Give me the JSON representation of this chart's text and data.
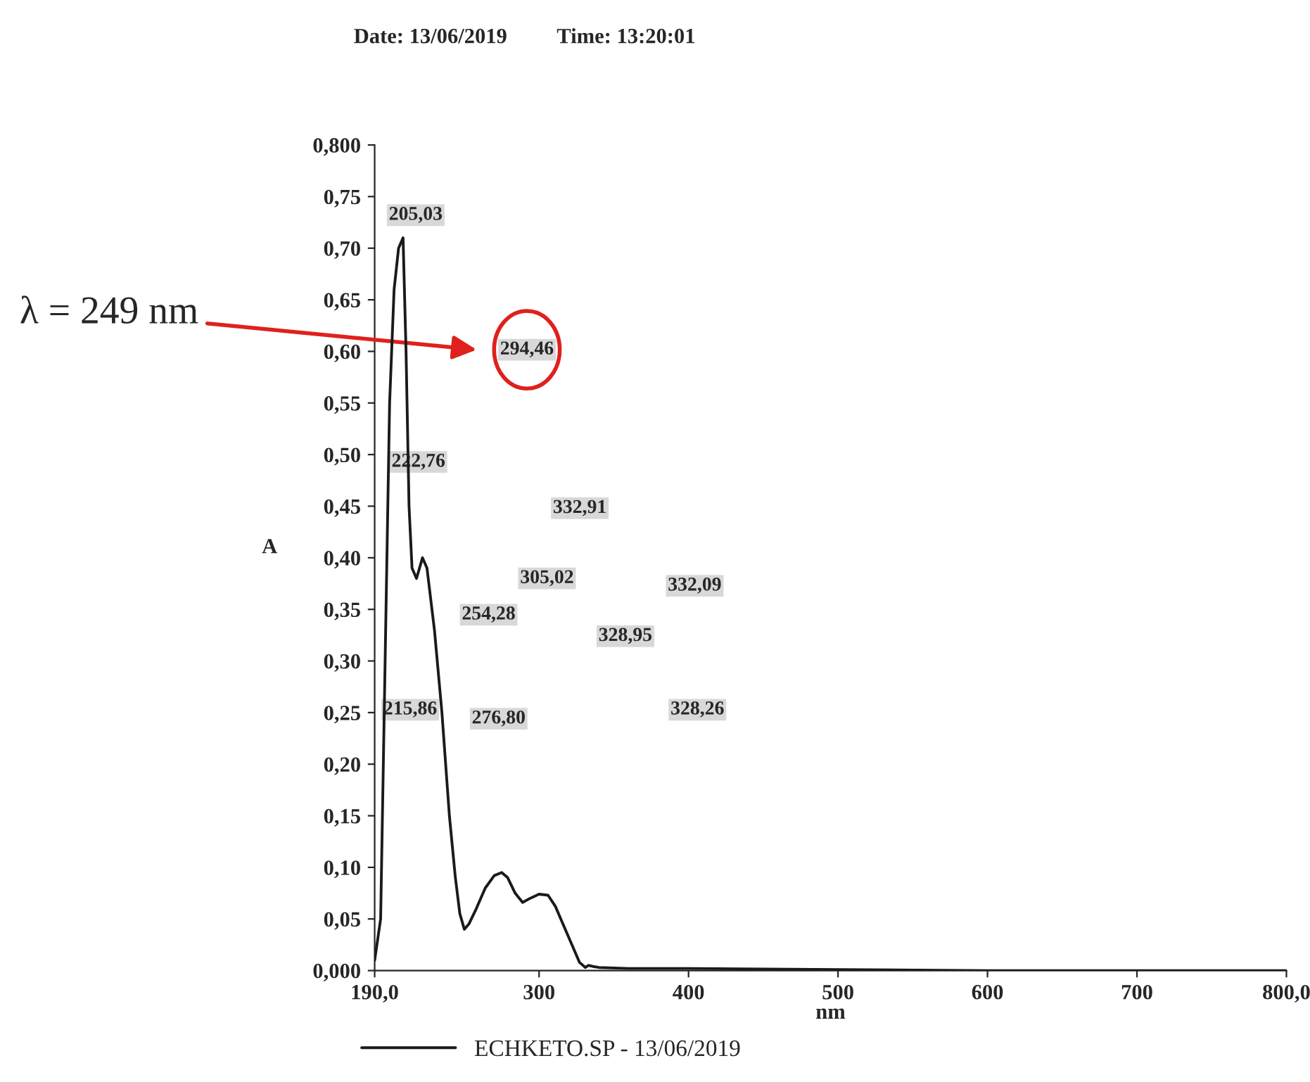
{
  "chart_data": {
    "type": "line",
    "xlabel": "nm",
    "ylabel": "A",
    "series": [
      {
        "name": "ECHKETO.SP - 13/06/2019",
        "color": "#1a1a1a",
        "x": [
          190,
          194,
          197,
          200,
          203,
          206,
          209,
          211,
          213,
          215,
          218,
          222,
          225,
          230,
          235,
          240,
          244,
          247,
          250,
          253,
          258,
          264,
          270,
          275,
          279,
          284,
          289,
          294,
          300,
          306,
          311,
          316,
          322,
          327,
          331,
          333,
          336,
          340,
          360,
          400,
          500,
          600,
          700,
          800
        ],
        "values": [
          0.01,
          0.05,
          0.3,
          0.55,
          0.66,
          0.7,
          0.71,
          0.6,
          0.45,
          0.39,
          0.38,
          0.4,
          0.39,
          0.33,
          0.25,
          0.15,
          0.09,
          0.055,
          0.04,
          0.045,
          0.06,
          0.08,
          0.092,
          0.095,
          0.09,
          0.075,
          0.066,
          0.07,
          0.074,
          0.073,
          0.062,
          0.045,
          0.025,
          0.008,
          0.003,
          0.005,
          0.004,
          0.003,
          0.002,
          0.002,
          0.001,
          0.0,
          0.0,
          0.0
        ]
      }
    ],
    "xlim": [
      190,
      800
    ],
    "ylim": [
      0,
      0.8
    ],
    "xticks": [
      {
        "value": 190,
        "label": "190,0"
      },
      300,
      400,
      500,
      600,
      700,
      {
        "value": 800,
        "label": "800,0"
      }
    ],
    "yticks": [
      {
        "value": 0,
        "label": "0,000"
      },
      {
        "value": 0.05,
        "label": "0,05"
      },
      {
        "value": 0.1,
        "label": "0,10"
      },
      {
        "value": 0.15,
        "label": "0,15"
      },
      {
        "value": 0.2,
        "label": "0,20"
      },
      {
        "value": 0.25,
        "label": "0,25"
      },
      {
        "value": 0.3,
        "label": "0,30"
      },
      {
        "value": 0.35,
        "label": "0,35"
      },
      {
        "value": 0.4,
        "label": "0,40"
      },
      {
        "value": 0.45,
        "label": "0,45"
      },
      {
        "value": 0.5,
        "label": "0,50"
      },
      {
        "value": 0.55,
        "label": "0,55"
      },
      {
        "value": 0.6,
        "label": "0,60"
      },
      {
        "value": 0.65,
        "label": "0,65"
      },
      {
        "value": 0.7,
        "label": "0,70"
      },
      {
        "value": 0.75,
        "label": "0,75"
      },
      {
        "value": 0.8,
        "label": "0,800"
      }
    ],
    "grid": false,
    "legend": "bottom",
    "marker": "none",
    "line_style": "solid",
    "annotations": [
      "Date: 13/06/2019",
      "Time: 13:20:01",
      "λ = 249 nm",
      "205,03",
      "222,76",
      "215,86",
      "254,28",
      "276,80",
      "294,46",
      "305,02",
      "332,91",
      "328,95",
      "332,09",
      "328,26"
    ]
  }
}
